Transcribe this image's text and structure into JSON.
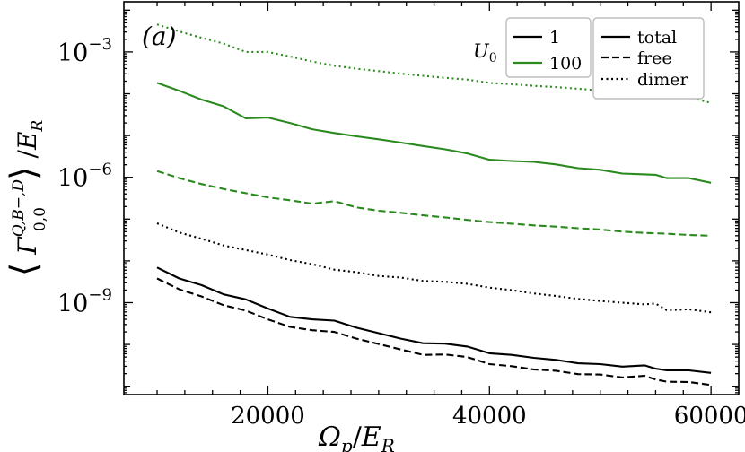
{
  "chart_data": {
    "type": "line",
    "panel_label": "(a)",
    "title": "",
    "xlabel": "Ω_p / E_R",
    "ylabel": "⟨ Γ^{Q,B−,D}_{0,0} ⟩ / E_R",
    "xlim": [
      7000,
      62500
    ],
    "ylim_log10": [
      -11.2,
      -1.8
    ],
    "yscale": "log",
    "x_ticks": [
      20000,
      40000,
      60000
    ],
    "x_tick_labels": [
      "20000",
      "40000",
      "60000"
    ],
    "y_ticks_log10": [
      -9,
      -6,
      -3
    ],
    "y_tick_labels": [
      "10",
      "10",
      "10"
    ],
    "y_tick_exponents": [
      "−9",
      "−6",
      "−3"
    ],
    "grid": false,
    "legend_u0": {
      "title": "U",
      "title_subscript": "0",
      "placement": "top-right",
      "entries": [
        {
          "label": "1",
          "color": "#000000"
        },
        {
          "label": "100",
          "color": "#2a8a1e"
        }
      ]
    },
    "legend_style": {
      "placement": "top-right",
      "entries": [
        {
          "label": "total",
          "dash": "solid"
        },
        {
          "label": "free",
          "dash": "dashed"
        },
        {
          "label": "dimer",
          "dash": "dotted"
        }
      ]
    },
    "x": [
      10000,
      12000,
      14000,
      16000,
      18000,
      20000,
      22000,
      24000,
      26000,
      28000,
      30000,
      32000,
      34000,
      36000,
      38000,
      40000,
      42000,
      44000,
      46000,
      48000,
      50000,
      52000,
      54000,
      55000,
      56000,
      58000,
      60000
    ],
    "series": [
      {
        "color": "#2a8a1e",
        "dash": "dotted",
        "label_values": "U0=100 dimer",
        "log10_values": [
          -2.34,
          -2.51,
          -2.66,
          -2.8,
          -3.0,
          -3.0,
          -3.11,
          -3.23,
          -3.33,
          -3.4,
          -3.46,
          -3.52,
          -3.57,
          -3.62,
          -3.66,
          -3.74,
          -3.77,
          -3.81,
          -3.84,
          -3.88,
          -3.92,
          -3.96,
          -3.99,
          -4.02,
          -4.06,
          -4.08,
          -4.22
        ]
      },
      {
        "color": "#2a8a1e",
        "dash": "solid",
        "label_values": "U0=100 total",
        "log10_values": [
          -3.74,
          -3.93,
          -4.14,
          -4.3,
          -4.59,
          -4.57,
          -4.7,
          -4.85,
          -4.94,
          -5.02,
          -5.09,
          -5.17,
          -5.25,
          -5.33,
          -5.43,
          -5.58,
          -5.61,
          -5.63,
          -5.69,
          -5.78,
          -5.82,
          -5.91,
          -5.93,
          -5.94,
          -6.02,
          -6.02,
          -6.13
        ]
      },
      {
        "color": "#2a8a1e",
        "dash": "dashed",
        "label_values": "U0=100 free",
        "log10_values": [
          -5.85,
          -6.02,
          -6.16,
          -6.28,
          -6.38,
          -6.48,
          -6.55,
          -6.63,
          -6.57,
          -6.72,
          -6.8,
          -6.85,
          -6.91,
          -6.96,
          -7.02,
          -7.07,
          -7.11,
          -7.15,
          -7.18,
          -7.22,
          -7.25,
          -7.3,
          -7.33,
          -7.34,
          -7.35,
          -7.38,
          -7.4
        ]
      },
      {
        "color": "#000000",
        "dash": "dotted",
        "label_values": "U0=1 dimer",
        "log10_values": [
          -7.1,
          -7.32,
          -7.47,
          -7.63,
          -7.74,
          -7.85,
          -7.98,
          -8.08,
          -8.21,
          -8.27,
          -8.36,
          -8.4,
          -8.48,
          -8.5,
          -8.55,
          -8.64,
          -8.7,
          -8.78,
          -8.84,
          -8.91,
          -8.96,
          -9.0,
          -9.04,
          -9.02,
          -9.18,
          -9.16,
          -9.23
        ]
      },
      {
        "color": "#000000",
        "dash": "solid",
        "label_values": "U0=1 total",
        "log10_values": [
          -8.16,
          -8.42,
          -8.58,
          -8.8,
          -8.92,
          -9.14,
          -9.34,
          -9.4,
          -9.43,
          -9.6,
          -9.73,
          -9.86,
          -9.97,
          -9.98,
          -10.05,
          -10.21,
          -10.25,
          -10.32,
          -10.37,
          -10.45,
          -10.47,
          -10.53,
          -10.5,
          -10.58,
          -10.62,
          -10.62,
          -10.68
        ]
      },
      {
        "color": "#000000",
        "dash": "dashed",
        "label_values": "U0=1 free",
        "log10_values": [
          -8.42,
          -8.68,
          -8.85,
          -9.06,
          -9.19,
          -9.4,
          -9.58,
          -9.66,
          -9.7,
          -9.86,
          -9.99,
          -10.12,
          -10.25,
          -10.24,
          -10.3,
          -10.47,
          -10.52,
          -10.6,
          -10.63,
          -10.71,
          -10.72,
          -10.79,
          -10.75,
          -10.84,
          -10.89,
          -10.9,
          -10.97
        ]
      }
    ]
  }
}
